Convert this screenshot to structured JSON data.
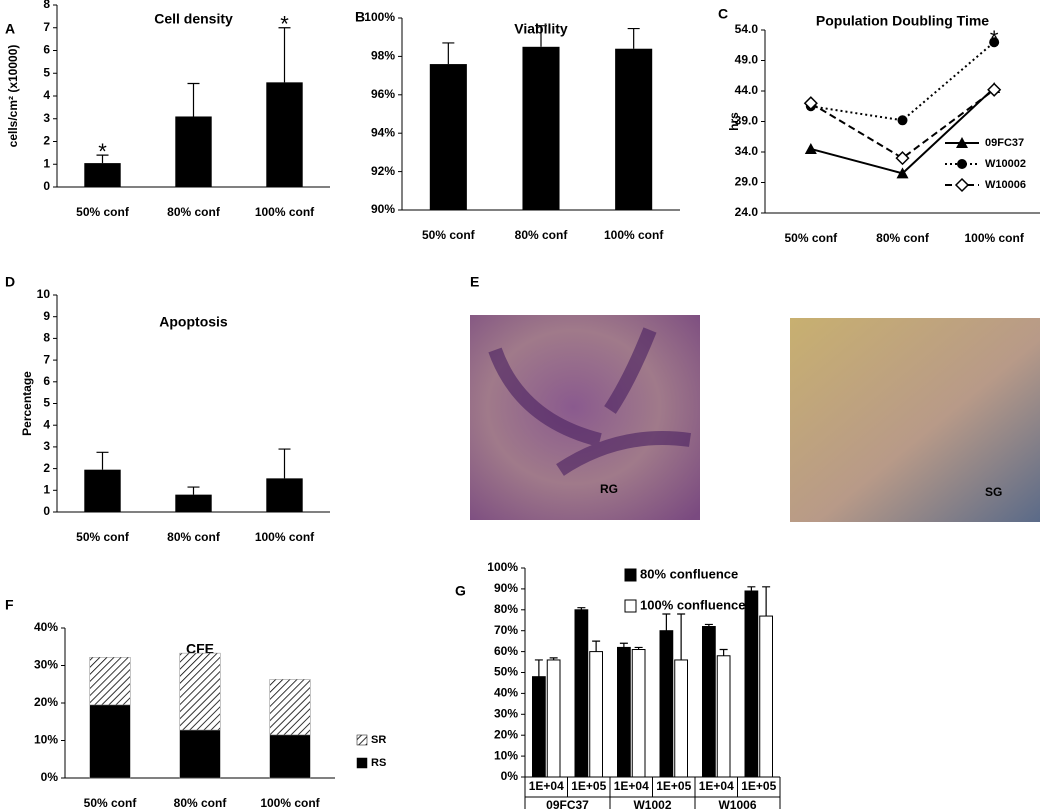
{
  "chart_data": [
    {
      "type": "bar",
      "letter": "A",
      "title": "Cell density",
      "ylabel": "cells/cm² (x10000)",
      "categories": [
        "50% conf",
        "80% conf",
        "100%  conf"
      ],
      "values": [
        1.05,
        3.1,
        4.6
      ],
      "errors": [
        0.35,
        1.45,
        2.4
      ],
      "color": "#000000",
      "ylim": [
        0,
        8
      ],
      "yticks": [
        0,
        1,
        2,
        3,
        4,
        5,
        6,
        7,
        8
      ],
      "annotations": [
        "*",
        "*"
      ]
    },
    {
      "type": "bar",
      "letter": "B",
      "title": "Viability",
      "categories": [
        "50% conf",
        "80% conf",
        "100% conf"
      ],
      "values": [
        97.6,
        98.5,
        98.4
      ],
      "errors": [
        1.1,
        1.1,
        1.05
      ],
      "color": "#000000",
      "ylim": [
        90,
        100
      ],
      "yticks": [
        {
          "value": 90,
          "label": "90%"
        },
        {
          "value": 92,
          "label": "92%"
        },
        {
          "value": 94,
          "label": "94%"
        },
        {
          "value": 96,
          "label": "96%"
        },
        {
          "value": 98,
          "label": "98%"
        },
        {
          "value": 100,
          "label": "100%"
        }
      ]
    },
    {
      "type": "line",
      "letter": "C",
      "title": "Population Doubling Time",
      "ylabel": "hrs",
      "categories": [
        "50% conf",
        "80% conf",
        "100% conf"
      ],
      "series": [
        {
          "name": "09FC37",
          "color": "#000000",
          "marker": "triangle",
          "line_style": "solid",
          "values": [
            34.5,
            30.5,
            44.5
          ]
        },
        {
          "name": "W10002",
          "color": "#000000",
          "marker": "circle",
          "line_style": "dotted",
          "values": [
            41.5,
            39.2,
            52
          ]
        },
        {
          "name": "W10006",
          "color": "#000000",
          "marker": "diamond",
          "line_style": "dashed",
          "values": [
            42,
            33,
            44.2
          ]
        }
      ],
      "ylim": [
        24,
        54
      ],
      "yticks": [
        {
          "value": 24,
          "label": "24.0"
        },
        {
          "value": 29,
          "label": "29.0"
        },
        {
          "value": 34,
          "label": "34.0"
        },
        {
          "value": 39,
          "label": "39.0"
        },
        {
          "value": 44,
          "label": "44.0"
        },
        {
          "value": 49,
          "label": "49.0"
        },
        {
          "value": 54,
          "label": "54.0"
        }
      ],
      "legend": "lower right",
      "annotations": [
        "*"
      ]
    },
    {
      "type": "bar",
      "letter": "D",
      "title": "Apoptosis",
      "ylabel": "Percentage",
      "categories": [
        "50% conf",
        "80% conf",
        "100% conf"
      ],
      "values": [
        1.95,
        0.8,
        1.55
      ],
      "errors": [
        0.8,
        0.35,
        1.35
      ],
      "color": "#000000",
      "ylim": [
        0,
        10
      ],
      "yticks": [
        0,
        1,
        2,
        3,
        4,
        5,
        6,
        7,
        8,
        9,
        10
      ]
    },
    {
      "type": "stacked_bar",
      "letter": "F",
      "title": "CFE",
      "categories": [
        "50% conf",
        "80% conf",
        "100% conf"
      ],
      "series": [
        {
          "name": "RS",
          "color": "#000000",
          "values": [
            19.5,
            12.8,
            11.5
          ]
        },
        {
          "name": "SR",
          "color": "#000000",
          "pattern": "hatch",
          "values": [
            12.7,
            20.5,
            14.8
          ]
        }
      ],
      "ylim": [
        0,
        40
      ],
      "yticks": [
        {
          "value": 0,
          "label": "0%"
        },
        {
          "value": 10,
          "label": "10%"
        },
        {
          "value": 20,
          "label": "20%"
        },
        {
          "value": 30,
          "label": "30%"
        },
        {
          "value": 40,
          "label": "40%"
        }
      ],
      "legend": "right"
    },
    {
      "type": "grouped_bar",
      "letter": "G",
      "categories": [
        "1E+04",
        "1E+05",
        "1E+04",
        "1E+05",
        "1E+04",
        "1E+05"
      ],
      "groups": [
        "09FC37",
        "W1002",
        "W1006"
      ],
      "series": [
        {
          "name": "80% confluence",
          "color": "#000000",
          "values": [
            48,
            80,
            62,
            70,
            72,
            89
          ],
          "errors": [
            8,
            1,
            2,
            8,
            1,
            2
          ]
        },
        {
          "name": "100% confluence",
          "color": "#ffffff",
          "values": [
            56,
            60,
            61,
            56,
            58,
            77
          ],
          "errors": [
            1,
            5,
            1,
            22,
            3,
            14
          ]
        }
      ],
      "ylim": [
        0,
        100
      ],
      "yticks": [
        {
          "value": 0,
          "label": "0%"
        },
        {
          "value": 10,
          "label": "10%"
        },
        {
          "value": 20,
          "label": "20%"
        },
        {
          "value": 30,
          "label": "30%"
        },
        {
          "value": 40,
          "label": "40%"
        },
        {
          "value": 50,
          "label": "50%"
        },
        {
          "value": 60,
          "label": "60%"
        },
        {
          "value": 70,
          "label": "70%"
        },
        {
          "value": 80,
          "label": "80%"
        },
        {
          "value": 90,
          "label": "90%"
        },
        {
          "value": 100,
          "label": "100%"
        }
      ],
      "legend": "top"
    }
  ],
  "image_panel": {
    "letter": "E",
    "labels": [
      "RG",
      "SG"
    ]
  }
}
